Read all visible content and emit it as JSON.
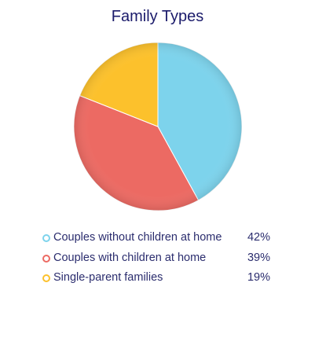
{
  "chart_data": {
    "type": "pie",
    "title": "Family Types",
    "categories": [
      "Couples without children at home",
      "Couples with children at home",
      "Single-parent families"
    ],
    "values": [
      42,
      39,
      19
    ],
    "value_labels": [
      "42%",
      "39%",
      "19%"
    ],
    "colors": [
      "#7dd3ec",
      "#ec6a63",
      "#fcc12c"
    ],
    "legend_position": "bottom"
  }
}
